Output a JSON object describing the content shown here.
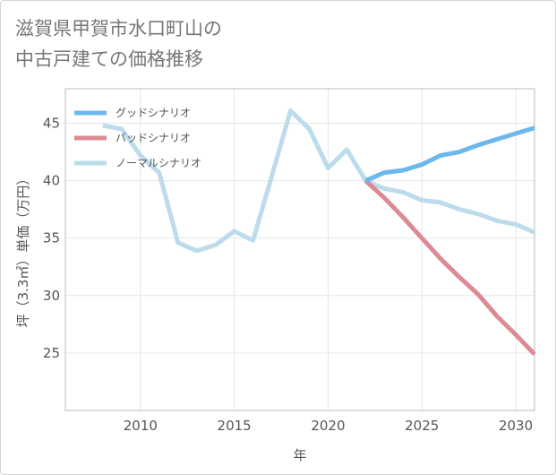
{
  "title": {
    "line1": "滋賀県甲賀市水口町山の",
    "line2": "中古戸建ての価格推移"
  },
  "chart_data": {
    "type": "line",
    "xlabel": "年",
    "ylabel": "坪（3.3㎡）単価（万円）",
    "xlim": [
      2006,
      2031
    ],
    "ylim": [
      20,
      48
    ],
    "xticks": [
      2010,
      2015,
      2020,
      2025,
      2030
    ],
    "yticks": [
      25,
      30,
      35,
      40,
      45
    ],
    "xtick_labels": [
      "2010",
      "2015",
      "2020",
      "2025",
      "2030"
    ],
    "ytick_labels": [
      "25",
      "30",
      "35",
      "40",
      "45"
    ],
    "grid": true,
    "legend_position": "top-left",
    "series": [
      {
        "name": "グッドシナリオ",
        "color": "#6cb8ec",
        "x": [
          2022,
          2023,
          2024,
          2025,
          2026,
          2027,
          2028,
          2029,
          2030,
          2031
        ],
        "values": [
          40.0,
          40.7,
          40.9,
          41.4,
          42.2,
          42.5,
          43.1,
          43.6,
          44.1,
          44.6
        ]
      },
      {
        "name": "バッドシナリオ",
        "color": "#dc8a94",
        "x": [
          2022,
          2023,
          2024,
          2025,
          2026,
          2027,
          2028,
          2029,
          2030,
          2031
        ],
        "values": [
          40.0,
          38.5,
          36.8,
          35.0,
          33.2,
          31.6,
          30.1,
          28.2,
          26.6,
          24.9
        ]
      },
      {
        "name": "ノーマルシナリオ",
        "color": "#bcdcec",
        "x": [
          2008,
          2009,
          2010,
          2011,
          2012,
          2013,
          2014,
          2015,
          2016,
          2017,
          2018,
          2019,
          2020,
          2021,
          2022,
          2023,
          2024,
          2025,
          2026,
          2027,
          2028,
          2029,
          2030,
          2031
        ],
        "values": [
          44.8,
          44.5,
          42.2,
          40.7,
          34.6,
          33.9,
          34.4,
          35.6,
          34.8,
          40.4,
          46.1,
          44.5,
          41.1,
          42.7,
          40.0,
          39.3,
          39.0,
          38.3,
          38.1,
          37.5,
          37.1,
          36.5,
          36.2,
          35.5
        ]
      }
    ]
  }
}
